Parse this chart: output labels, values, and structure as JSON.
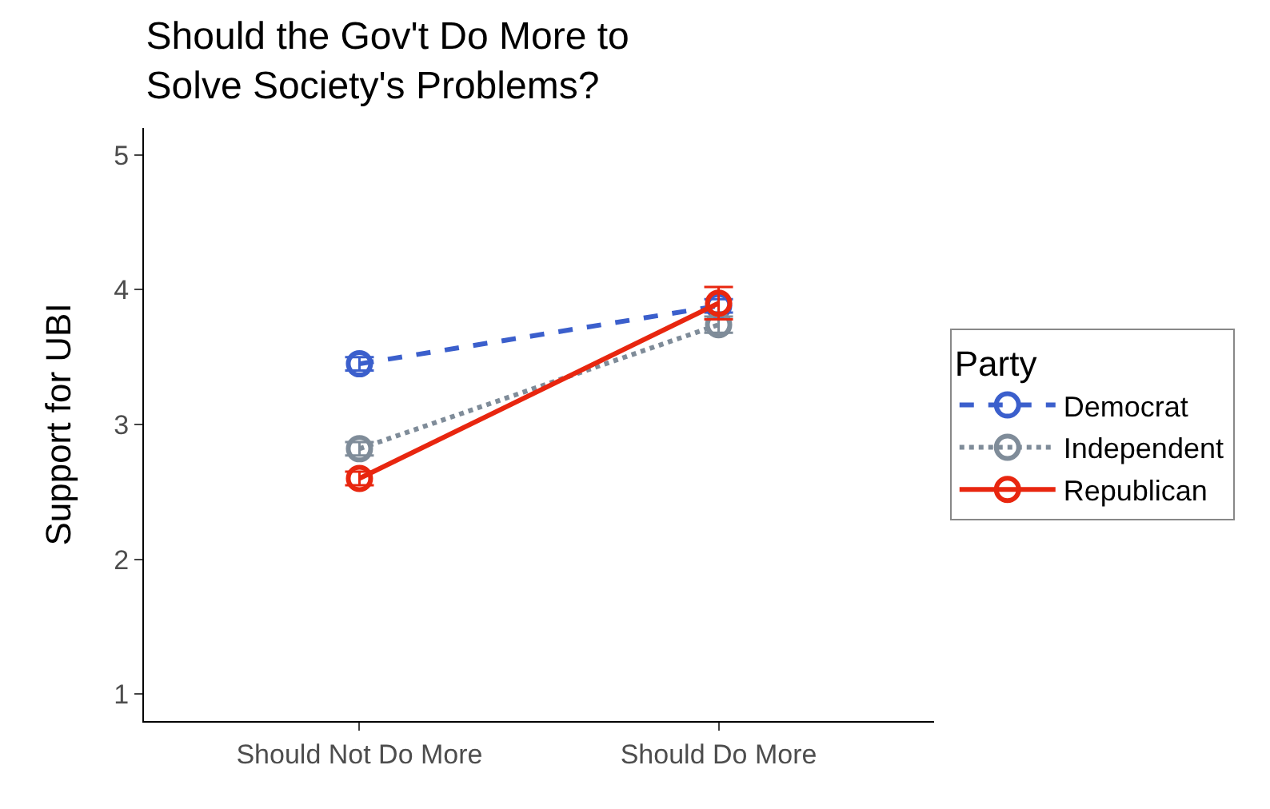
{
  "chart_data": {
    "type": "line",
    "title": "Should the Gov't Do More to\nSolve Society's Problems?",
    "ylabel": "Support for UBI",
    "legend_title": "Party",
    "categories": [
      "Should Not Do More",
      "Should Do More"
    ],
    "series": [
      {
        "name": "Democrat",
        "color": "#3b5fcc",
        "values": [
          3.45,
          3.88
        ],
        "errors": [
          0.05,
          0.05
        ],
        "line_style": "dashed"
      },
      {
        "name": "Independent",
        "color": "#7f8c99",
        "values": [
          2.82,
          3.74
        ],
        "errors": [
          0.05,
          0.06
        ],
        "line_style": "dotted"
      },
      {
        "name": "Republican",
        "color": "#e8260f",
        "values": [
          2.6,
          3.9
        ],
        "errors": [
          0.05,
          0.12
        ],
        "line_style": "solid"
      }
    ],
    "ylim": [
      0.8,
      5.2
    ],
    "yticks": [
      1,
      2,
      3,
      4,
      5
    ],
    "legend": "right",
    "marker": "circle"
  }
}
